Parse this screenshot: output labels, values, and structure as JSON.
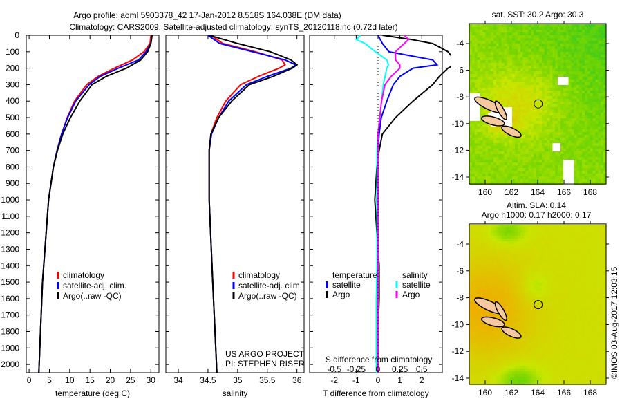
{
  "title_line1": "Argo profile: aoml 5903378_42 17-Jan-2012 8.518S 164.038E (DM data)",
  "title_line2": "Climatology: CARS2009. Satellite-adjusted climatology: synTS_20120118.nc (0.72d later)",
  "colors": {
    "climatology": "#ff0000",
    "satellite": "#0000ff",
    "argo": "#000000",
    "s_satellite": "#00ffff",
    "s_argo": "#ff00ff"
  },
  "chart_data": [
    {
      "type": "line",
      "name": "temperature",
      "xlabel": "temperature (deg C)",
      "ylabel": "",
      "xlim": [
        -0.7,
        32
      ],
      "ylim": [
        2050,
        0
      ],
      "xticks": [
        "0",
        "5",
        "10",
        "15",
        "20",
        "25",
        "30"
      ],
      "yticks": [
        "0",
        "100",
        "200",
        "300",
        "400",
        "500",
        "600",
        "700",
        "800",
        "900",
        "1000",
        "1100",
        "1200",
        "1300",
        "1400",
        "1500",
        "1600",
        "1700",
        "1800",
        "1900",
        "2000"
      ],
      "legend": [
        "climatology",
        "satellite-adj. clim.",
        "Argo(..raw -QC)"
      ],
      "depth": [
        0,
        50,
        100,
        150,
        200,
        250,
        300,
        400,
        500,
        600,
        700,
        800,
        1000,
        1200,
        1500,
        1800,
        2050
      ],
      "series": [
        {
          "name": "climatology",
          "values": [
            30,
            29.8,
            28.3,
            25.5,
            21,
            17,
            14.2,
            11.2,
            9.4,
            8,
            6.9,
            6,
            4.8,
            4.2,
            3.3,
            2.8,
            2.4
          ]
        },
        {
          "name": "satellite-adj. clim.",
          "values": [
            30.3,
            30,
            28.8,
            27,
            22,
            17.5,
            14.8,
            11.5,
            9.5,
            8,
            6.9,
            6,
            4.8,
            4.2,
            3.3,
            2.8,
            2.4
          ]
        },
        {
          "name": "Argo(..raw -QC)",
          "values": [
            30.3,
            30,
            29.2,
            27.5,
            24,
            19,
            15.5,
            12.5,
            10.2,
            8.3,
            7,
            6,
            4.8,
            4.2,
            3.3,
            2.8,
            2.4
          ]
        }
      ]
    },
    {
      "type": "line",
      "name": "salinity",
      "xlabel": "salinity",
      "xlim": [
        33.79,
        36.12
      ],
      "ylim": [
        2050,
        0
      ],
      "xticks": [
        "34",
        "34.5",
        "35",
        "35.5",
        "36"
      ],
      "legend": [
        "climatology",
        "satellite-adj. clim.",
        "Argo(..raw -QC)"
      ],
      "annotation": [
        "US ARGO PROJECT",
        "PI: STEPHEN RISER"
      ],
      "depth": [
        0,
        50,
        100,
        150,
        180,
        200,
        250,
        300,
        400,
        500,
        600,
        700,
        1000,
        1500,
        2050
      ],
      "series": [
        {
          "name": "climatology",
          "values": [
            34.55,
            34.75,
            35.3,
            35.75,
            35.8,
            35.7,
            35.35,
            35.05,
            34.8,
            34.65,
            34.55,
            34.52,
            34.52,
            34.58,
            34.65
          ]
        },
        {
          "name": "satellite-adj. clim.",
          "values": [
            34.5,
            34.7,
            35.25,
            35.8,
            35.98,
            35.9,
            35.5,
            35.15,
            34.85,
            34.68,
            34.56,
            34.52,
            34.52,
            34.58,
            34.65
          ]
        },
        {
          "name": "Argo(..raw -QC)",
          "values": [
            34.52,
            35.0,
            35.55,
            35.9,
            36.0,
            35.92,
            35.6,
            35.2,
            34.9,
            34.68,
            34.55,
            34.52,
            34.52,
            34.58,
            34.65
          ]
        }
      ]
    },
    {
      "type": "line",
      "name": "difference",
      "xlabel": "T difference from climatology",
      "x2label": "S difference from climatology",
      "xlim": [
        -3.13,
        2.94
      ],
      "ylim": [
        2050,
        0
      ],
      "xticks": [
        "-2",
        "-1",
        "0",
        "1",
        "2"
      ],
      "x2ticks": [
        "-0.5",
        "-0.25",
        "0",
        "0.25",
        "0.5"
      ],
      "legend_t_title": "temperature",
      "legend_s_title": "salinity",
      "legend_t": [
        "satellite",
        "Argo"
      ],
      "legend_s": [
        "satellite",
        "Argo"
      ],
      "depth": [
        0,
        25,
        50,
        100,
        150,
        180,
        200,
        250,
        300,
        400,
        500,
        600,
        700,
        800,
        1000,
        1200,
        1400,
        1600,
        1800,
        2050
      ],
      "series": [
        {
          "name": "T satellite",
          "unit": "T",
          "values": [
            0,
            0.1,
            0.2,
            0.5,
            2.5,
            2.7,
            1.6,
            1.0,
            0.7,
            0.4,
            0.15,
            0.05,
            0,
            0,
            -0.05,
            0,
            0,
            0,
            0,
            0
          ]
        },
        {
          "name": "T Argo",
          "unit": "T",
          "values": [
            0.2,
            1.5,
            2.5,
            3.2,
            3.5,
            3.5,
            3.2,
            2.8,
            2.5,
            1.6,
            0.8,
            0.2,
            0.05,
            -0.05,
            -0.15,
            -0.05,
            0.05,
            0.05,
            0,
            0
          ]
        },
        {
          "name": "S satellite",
          "unit": "S",
          "values": [
            -0.2,
            -0.25,
            -0.15,
            -0.03,
            0.1,
            0.12,
            0.1,
            0.08,
            0.06,
            0.04,
            0.02,
            0.0,
            -0.01,
            -0.01,
            -0.01,
            -0.01,
            -0.01,
            -0.02,
            -0.02,
            -0.02
          ]
        },
        {
          "name": "S Argo",
          "unit": "S",
          "values": [
            0.3,
            0.35,
            0.3,
            0.2,
            0.2,
            0.25,
            0.25,
            0.15,
            0.08,
            0.04,
            0.02,
            0.0,
            0.0,
            0.0,
            0.0,
            0.0,
            0.0,
            0.0,
            0.0,
            0.0
          ]
        }
      ]
    },
    {
      "type": "heatmap",
      "name": "sst-map",
      "title": "sat. SST: 30.2 Argo: 30.3",
      "xlim": [
        159,
        169.2
      ],
      "ylim": [
        -14.5,
        -2.5
      ],
      "xticks": [
        "160",
        "162",
        "164",
        "166",
        "168"
      ],
      "yticks": [
        "-4",
        "-6",
        "-8",
        "-10",
        "-12",
        "-14"
      ],
      "marker": {
        "lon": 164.038,
        "lat": -8.518
      }
    },
    {
      "type": "heatmap",
      "name": "sla-map",
      "title_line1": "Altim. SLA: 0.14",
      "title_line2": "Argo h1000: 0.17 h2000: 0.17",
      "xlim": [
        159,
        169.2
      ],
      "ylim": [
        -14.5,
        -2.5
      ],
      "xticks": [
        "160",
        "162",
        "164",
        "166",
        "168"
      ],
      "yticks": [
        "-4",
        "-6",
        "-8",
        "-10",
        "-12",
        "-14"
      ],
      "marker": {
        "lon": 164.038,
        "lat": -8.518
      }
    }
  ],
  "credit": "©IMOS 03-Aug-2017 12:03:15"
}
